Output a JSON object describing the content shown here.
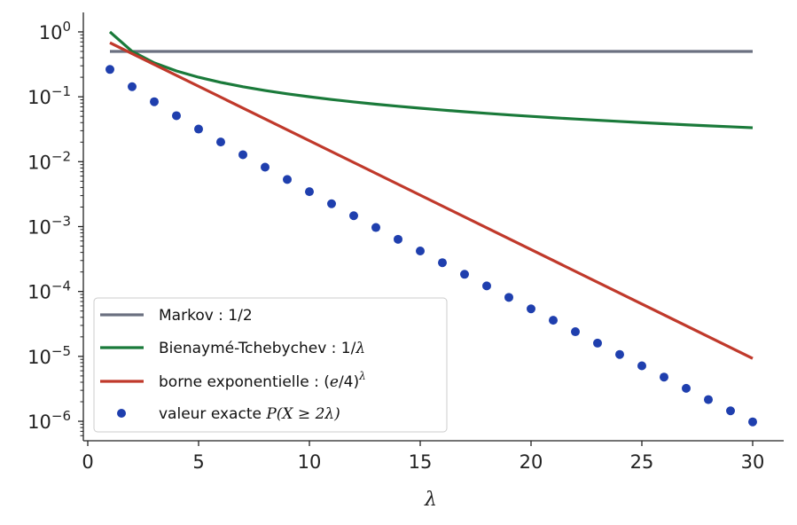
{
  "chart_data": {
    "type": "line",
    "xlabel": "λ",
    "ylabel": "",
    "title": "",
    "xlim": [
      -0.2,
      31.4
    ],
    "ylim_log10": [
      -6.3,
      0.3
    ],
    "yscale": "log",
    "grid": false,
    "legend_position": "bottom-left",
    "x_ticks": [
      0,
      5,
      10,
      15,
      20,
      25,
      30
    ],
    "y_ticks": [
      {
        "exp": 0,
        "base": "10",
        "power": "0"
      },
      {
        "exp": -1,
        "base": "10",
        "power": "−1"
      },
      {
        "exp": -2,
        "base": "10",
        "power": "−2"
      },
      {
        "exp": -3,
        "base": "10",
        "power": "−3"
      },
      {
        "exp": -4,
        "base": "10",
        "power": "−4"
      },
      {
        "exp": -5,
        "base": "10",
        "power": "−5"
      },
      {
        "exp": -6,
        "base": "10",
        "power": "−6"
      }
    ],
    "series": [
      {
        "name": "Markov : 1/2",
        "kind": "line",
        "color": "#6b7080",
        "x": [
          1,
          30
        ],
        "y": [
          0.5,
          0.5
        ]
      },
      {
        "name": "Bienaymé-Tchebychev : 1/λ",
        "kind": "line",
        "color": "#1a7a3a",
        "x": [
          1,
          2,
          3,
          4,
          5,
          6,
          7,
          8,
          9,
          10,
          11,
          12,
          13,
          14,
          15,
          16,
          17,
          18,
          19,
          20,
          21,
          22,
          23,
          24,
          25,
          26,
          27,
          28,
          29,
          30
        ],
        "y": [
          1,
          0.5,
          0.3333,
          0.25,
          0.2,
          0.1667,
          0.1429,
          0.125,
          0.1111,
          0.1,
          0.0909,
          0.0833,
          0.0769,
          0.0714,
          0.0667,
          0.0625,
          0.0588,
          0.0556,
          0.0526,
          0.05,
          0.0476,
          0.0455,
          0.0435,
          0.0417,
          0.04,
          0.0385,
          0.037,
          0.0357,
          0.0345,
          0.0333
        ]
      },
      {
        "name": "borne exponentielle : (e/4)^λ",
        "kind": "line",
        "color": "#c0392b",
        "x": [
          1,
          30
        ],
        "y": [
          0.68,
          9.3e-06
        ]
      },
      {
        "name": "valeur exacte P(X ≥ 2λ)",
        "kind": "scatter",
        "color": "#1f3fae",
        "x": [
          1,
          2,
          3,
          4,
          5,
          6,
          7,
          8,
          9,
          10,
          11,
          12,
          13,
          14,
          15,
          16,
          17,
          18,
          19,
          20,
          21,
          22,
          23,
          24,
          25,
          26,
          27,
          28,
          29,
          30
        ],
        "y": [
          0.264,
          0.143,
          0.0839,
          0.0511,
          0.0318,
          0.0201,
          0.0128,
          0.00823,
          0.00532,
          0.00345,
          0.00225,
          0.00147,
          0.000968,
          0.000637,
          0.000421,
          0.000278,
          0.000184,
          0.000122,
          8.11e-05,
          5.4e-05,
          3.6e-05,
          2.4e-05,
          1.6e-05,
          1.07e-05,
          7.16e-06,
          4.8e-06,
          3.22e-06,
          2.16e-06,
          1.45e-06,
          9.8e-07
        ]
      }
    ],
    "legend": {
      "entries": [
        {
          "text": "Markov : 1/2",
          "color": "#6b7080",
          "kind": "line"
        },
        {
          "text": "Bienaymé-Tchebychev : 1/",
          "italic_suffix": "λ",
          "color": "#1a7a3a",
          "kind": "line"
        },
        {
          "text": "borne exponentielle : (",
          "italic_mid": "e",
          "mid_after": "/4)",
          "sup": "λ",
          "color": "#c0392b",
          "kind": "line"
        },
        {
          "text": "valeur exacte ",
          "italic_expr": "P(X ≥ 2λ)",
          "color": "#1f3fae",
          "kind": "scatter"
        }
      ]
    }
  }
}
